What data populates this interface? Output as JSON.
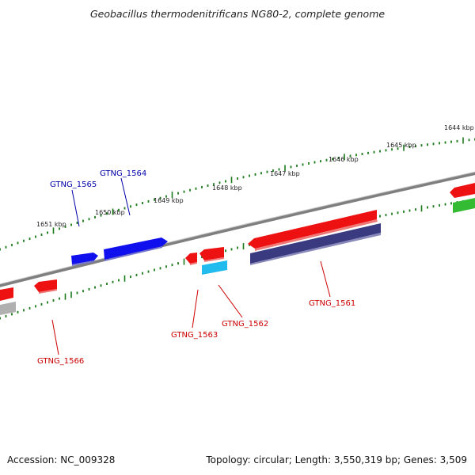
{
  "title": "Geobacillus thermodenitrificans NG80-2, complete genome",
  "footer": {
    "accession": "Accession: NC_009328",
    "summary": "Topology: circular; Length: 3,550,319 bp; Genes: 3,509"
  },
  "colors": {
    "backbone": "#7f7f7f",
    "tick": "#1a7a1a",
    "forward_label": "#0000aa",
    "reverse_label": "#cc0000",
    "red": "#ee1111",
    "blue": "#1010ee",
    "navy": "#3a3a80",
    "cyan": "#22bbee",
    "green": "#33bb33",
    "gray": "#b0b0b0"
  },
  "scale_labels": [
    "1644 kbp",
    "1645 kbp",
    "1646 kbp",
    "1647 kbp",
    "1648 kbp",
    "1649 kbp",
    "1650 kbp",
    "1651 kbp"
  ],
  "gene_labels": [
    {
      "id": "GTNG_1565",
      "strand": "forward"
    },
    {
      "id": "GTNG_1564",
      "strand": "forward"
    },
    {
      "id": "GTNG_1563",
      "strand": "reverse"
    },
    {
      "id": "GTNG_1562",
      "strand": "reverse"
    },
    {
      "id": "GTNG_1561",
      "strand": "reverse"
    },
    {
      "id": "GTNG_1566",
      "strand": "reverse"
    }
  ]
}
